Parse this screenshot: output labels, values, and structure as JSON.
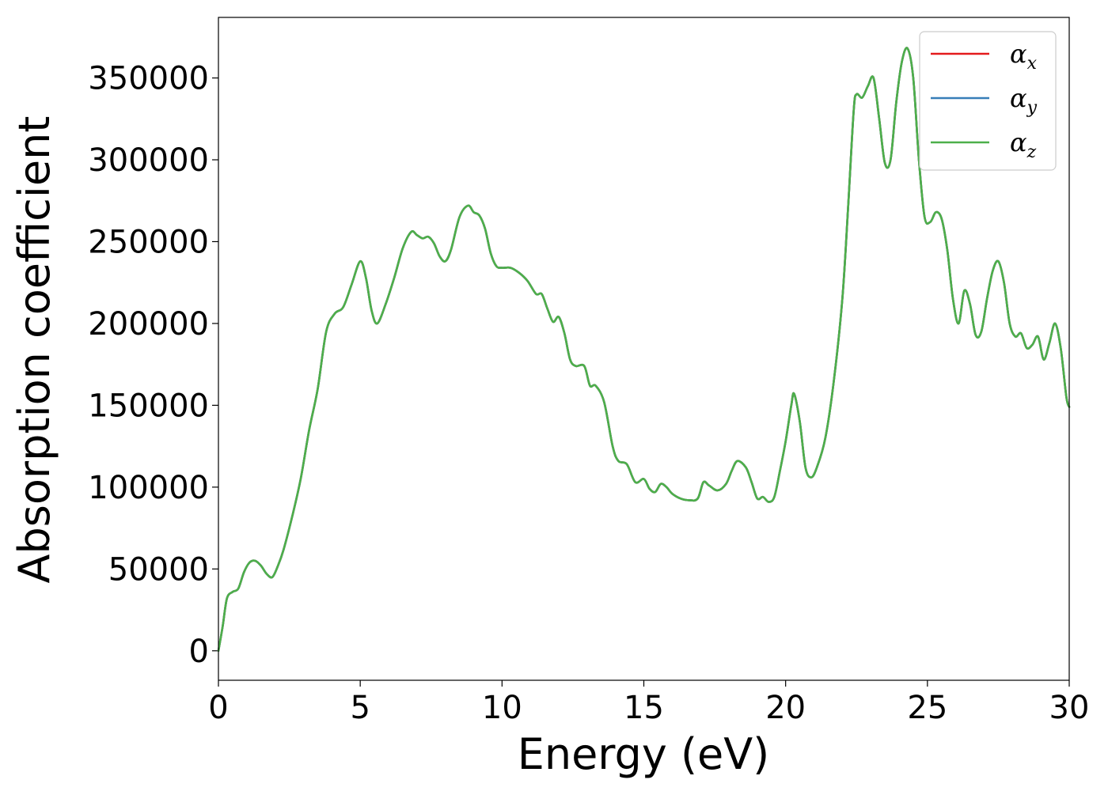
{
  "chart_data": {
    "type": "line",
    "xlabel": "Energy (eV)",
    "ylabel": "Absorption coefficient",
    "xlim": [
      0,
      30
    ],
    "ylim": [
      -18000,
      387000
    ],
    "xticks": [
      "0",
      "5",
      "10",
      "15",
      "20",
      "25",
      "30"
    ],
    "yticks": [
      "0",
      "50000",
      "100000",
      "150000",
      "200000",
      "250000",
      "300000",
      "350000"
    ],
    "legend_position": "top-right",
    "grid": false,
    "x": [
      0,
      0.15,
      0.3,
      0.5,
      0.7,
      0.9,
      1.1,
      1.3,
      1.5,
      1.7,
      1.9,
      2.1,
      2.3,
      2.6,
      2.9,
      3.2,
      3.5,
      3.8,
      4.1,
      4.4,
      4.7,
      5.0,
      5.2,
      5.4,
      5.6,
      5.9,
      6.2,
      6.5,
      6.8,
      7.0,
      7.2,
      7.4,
      7.6,
      7.8,
      8.0,
      8.2,
      8.5,
      8.8,
      9.0,
      9.2,
      9.4,
      9.6,
      9.8,
      10.0,
      10.3,
      10.6,
      10.9,
      11.2,
      11.4,
      11.6,
      11.8,
      12.0,
      12.2,
      12.4,
      12.6,
      12.9,
      13.1,
      13.3,
      13.6,
      13.9,
      14.1,
      14.4,
      14.7,
      15.0,
      15.2,
      15.4,
      15.6,
      15.8,
      16.0,
      16.3,
      16.6,
      16.9,
      17.1,
      17.3,
      17.6,
      17.9,
      18.1,
      18.3,
      18.6,
      18.8,
      19.0,
      19.2,
      19.4,
      19.6,
      19.8,
      20.0,
      20.2,
      20.3,
      20.5,
      20.7,
      20.9,
      21.1,
      21.4,
      21.7,
      22.0,
      22.2,
      22.4,
      22.5,
      22.7,
      22.9,
      23.1,
      23.3,
      23.5,
      23.7,
      23.9,
      24.1,
      24.3,
      24.5,
      24.7,
      24.9,
      25.1,
      25.3,
      25.5,
      25.7,
      25.9,
      26.1,
      26.3,
      26.5,
      26.7,
      26.9,
      27.1,
      27.3,
      27.5,
      27.7,
      27.9,
      28.1,
      28.3,
      28.5,
      28.7,
      28.9,
      29.1,
      29.3,
      29.5,
      29.7,
      29.9,
      30.0
    ],
    "series": [
      {
        "name": "α_x",
        "color": "#e41a1c",
        "values": [
          0,
          15000,
          32000,
          36000,
          38000,
          48000,
          54000,
          55000,
          52000,
          47000,
          45000,
          52000,
          62000,
          82000,
          105000,
          135000,
          160000,
          195000,
          206000,
          210000,
          224000,
          238000,
          228000,
          208000,
          200000,
          212000,
          228000,
          246000,
          256000,
          254000,
          252000,
          253000,
          249000,
          241000,
          238000,
          245000,
          265000,
          272000,
          268000,
          266000,
          258000,
          243000,
          235000,
          234000,
          234000,
          231000,
          226000,
          218000,
          218000,
          209000,
          201000,
          204000,
          194000,
          178000,
          174000,
          174000,
          162000,
          162000,
          152000,
          125000,
          116000,
          114000,
          103000,
          105000,
          99000,
          97000,
          102000,
          100000,
          96000,
          93000,
          92000,
          93000,
          103000,
          101000,
          98000,
          102000,
          110000,
          116000,
          112000,
          103000,
          93000,
          94000,
          91000,
          94000,
          110000,
          128000,
          150000,
          157000,
          140000,
          112000,
          106000,
          112000,
          130000,
          165000,
          215000,
          270000,
          330000,
          340000,
          338000,
          345000,
          350000,
          325000,
          298000,
          300000,
          335000,
          360000,
          368000,
          350000,
          300000,
          265000,
          262000,
          268000,
          264000,
          245000,
          215000,
          200000,
          220000,
          212000,
          193000,
          195000,
          215000,
          232000,
          238000,
          225000,
          200000,
          192000,
          194000,
          185000,
          187000,
          192000,
          178000,
          188000,
          200000,
          185000,
          155000,
          149000
        ]
      },
      {
        "name": "α_y",
        "color": "#377eb8",
        "values": [
          0,
          15000,
          32000,
          36000,
          38000,
          48000,
          54000,
          55000,
          52000,
          47000,
          45000,
          52000,
          62000,
          82000,
          105000,
          135000,
          160000,
          195000,
          206000,
          210000,
          224000,
          238000,
          228000,
          208000,
          200000,
          212000,
          228000,
          246000,
          256000,
          254000,
          252000,
          253000,
          249000,
          241000,
          238000,
          245000,
          265000,
          272000,
          268000,
          266000,
          258000,
          243000,
          235000,
          234000,
          234000,
          231000,
          226000,
          218000,
          218000,
          209000,
          201000,
          204000,
          194000,
          178000,
          174000,
          174000,
          162000,
          162000,
          152000,
          125000,
          116000,
          114000,
          103000,
          105000,
          99000,
          97000,
          102000,
          100000,
          96000,
          93000,
          92000,
          93000,
          103000,
          101000,
          98000,
          102000,
          110000,
          116000,
          112000,
          103000,
          93000,
          94000,
          91000,
          94000,
          110000,
          128000,
          150000,
          157000,
          140000,
          112000,
          106000,
          112000,
          130000,
          165000,
          215000,
          270000,
          330000,
          340000,
          338000,
          345000,
          350000,
          325000,
          298000,
          300000,
          335000,
          360000,
          368000,
          350000,
          300000,
          265000,
          262000,
          268000,
          264000,
          245000,
          215000,
          200000,
          220000,
          212000,
          193000,
          195000,
          215000,
          232000,
          238000,
          225000,
          200000,
          192000,
          194000,
          185000,
          187000,
          192000,
          178000,
          188000,
          200000,
          185000,
          155000,
          149000
        ]
      },
      {
        "name": "α_z",
        "color": "#4daf4a",
        "values": [
          0,
          15000,
          32000,
          36000,
          38000,
          48000,
          54000,
          55000,
          52000,
          47000,
          45000,
          52000,
          62000,
          82000,
          105000,
          135000,
          160000,
          195000,
          206000,
          210000,
          224000,
          238000,
          228000,
          208000,
          200000,
          212000,
          228000,
          246000,
          256000,
          254000,
          252000,
          253000,
          249000,
          241000,
          238000,
          245000,
          265000,
          272000,
          268000,
          266000,
          258000,
          243000,
          235000,
          234000,
          234000,
          231000,
          226000,
          218000,
          218000,
          209000,
          201000,
          204000,
          194000,
          178000,
          174000,
          174000,
          162000,
          162000,
          152000,
          125000,
          116000,
          114000,
          103000,
          105000,
          99000,
          97000,
          102000,
          100000,
          96000,
          93000,
          92000,
          93000,
          103000,
          101000,
          98000,
          102000,
          110000,
          116000,
          112000,
          103000,
          93000,
          94000,
          91000,
          94000,
          110000,
          128000,
          150000,
          157000,
          140000,
          112000,
          106000,
          112000,
          130000,
          165000,
          215000,
          270000,
          330000,
          340000,
          338000,
          345000,
          350000,
          325000,
          298000,
          300000,
          335000,
          360000,
          368000,
          350000,
          300000,
          265000,
          262000,
          268000,
          264000,
          245000,
          215000,
          200000,
          220000,
          212000,
          193000,
          195000,
          215000,
          232000,
          238000,
          225000,
          200000,
          192000,
          194000,
          185000,
          187000,
          192000,
          178000,
          188000,
          200000,
          185000,
          155000,
          149000
        ]
      }
    ],
    "legend": [
      {
        "symbol": "α",
        "sub": "x",
        "color": "#e41a1c"
      },
      {
        "symbol": "α",
        "sub": "y",
        "color": "#377eb8"
      },
      {
        "symbol": "α",
        "sub": "z",
        "color": "#4daf4a"
      }
    ]
  }
}
